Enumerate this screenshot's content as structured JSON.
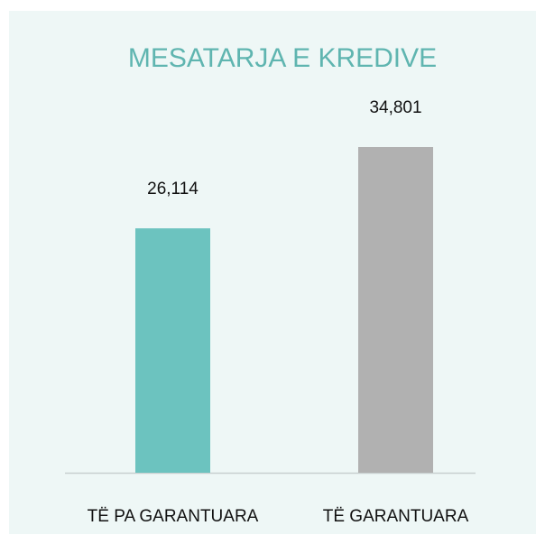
{
  "chart_data": {
    "type": "bar",
    "title": "MESATARJA E KREDIVE",
    "categories": [
      "TË PA GARANTUARA",
      "TË GARANTUARA"
    ],
    "values": [
      26114,
      34801
    ],
    "value_labels": [
      "26,114",
      "34,801"
    ],
    "colors": [
      "#6cc3bf",
      "#b1b1b1"
    ]
  }
}
